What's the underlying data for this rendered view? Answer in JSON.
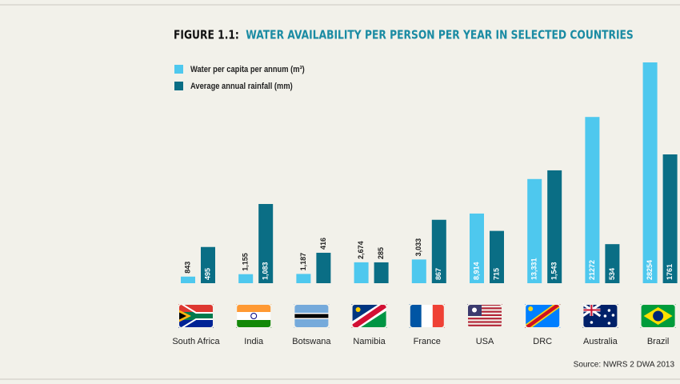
{
  "chart_data": {
    "type": "bar",
    "figure_label": "FIGURE 1.1:",
    "title": "WATER AVAILABILITY PER PERSON PER YEAR IN SELECTED COUNTRIES",
    "categories": [
      "South Africa",
      "India",
      "Botswana",
      "Namibia",
      "France",
      "USA",
      "DRC",
      "Australia",
      "Brazil"
    ],
    "series": [
      {
        "name": "Water per capita per annum (m³)",
        "color": "#4ec8ee",
        "values": [
          843,
          1155,
          1187,
          2674,
          3033,
          8914,
          13331,
          21272,
          28254
        ],
        "value_labels": [
          "843",
          "1,155",
          "1,187",
          "2,674",
          "3,033",
          "8,914",
          "13,331",
          "21272",
          "28254"
        ]
      },
      {
        "name": "Average annual rainfall (mm)",
        "color": "#0a6e85",
        "values": [
          495,
          1083,
          416,
          285,
          867,
          715,
          1543,
          534,
          1761
        ],
        "value_labels": [
          "495",
          "1,083",
          "416",
          "285",
          "867",
          "715",
          "1,543",
          "534",
          "1761"
        ]
      }
    ],
    "source": "Source: NWRS 2 DWA 2013"
  }
}
